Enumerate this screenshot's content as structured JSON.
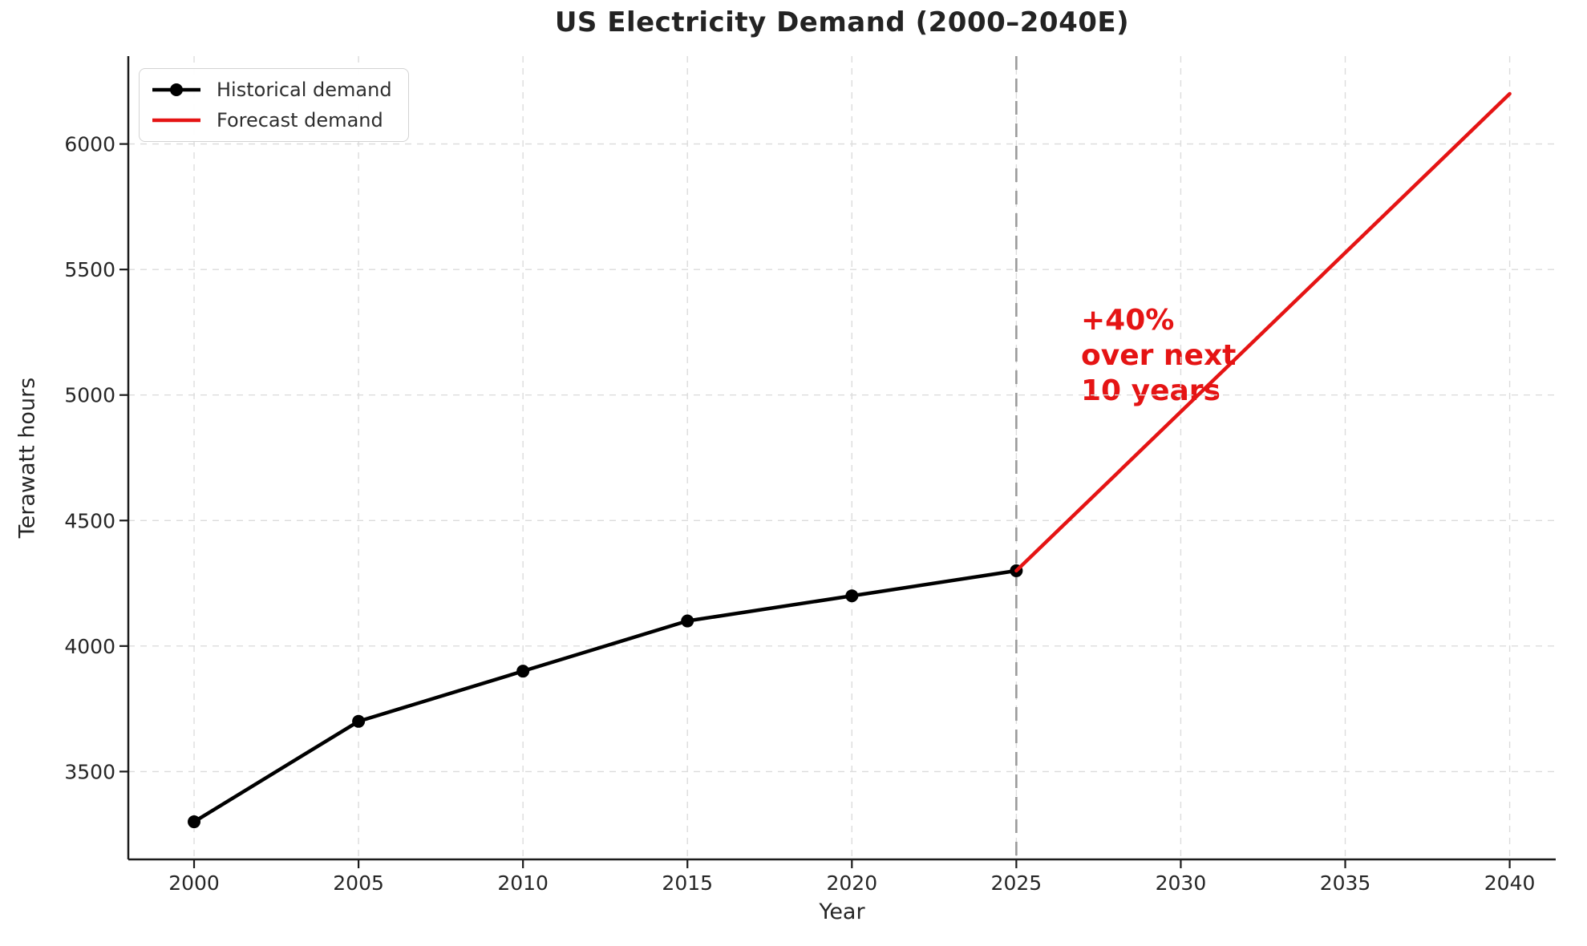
{
  "chart_data": {
    "type": "line",
    "title": "US Electricity Demand (2000–2040E)",
    "xlabel": "Year",
    "ylabel": "Terawatt hours",
    "x_ticks": [
      2000,
      2005,
      2010,
      2015,
      2020,
      2025,
      2030,
      2035,
      2040
    ],
    "y_ticks": [
      3500,
      4000,
      4500,
      5000,
      5500,
      6000
    ],
    "xlim": [
      1998.0,
      2041.4
    ],
    "ylim": [
      3150,
      6350
    ],
    "grid": true,
    "legend_position": "upper-left",
    "series": [
      {
        "name": "Historical demand",
        "color": "#000000",
        "marker": "circle",
        "x": [
          2000,
          2005,
          2010,
          2015,
          2020,
          2025
        ],
        "values": [
          3300,
          3700,
          3900,
          4100,
          4200,
          4300
        ]
      },
      {
        "name": "Forecast demand",
        "color": "#e51414",
        "marker": "none",
        "x": [
          2025,
          2040
        ],
        "values": [
          4300,
          6200
        ]
      }
    ],
    "forecast_divider": {
      "x": 2025,
      "color": "#9b9b9b",
      "style": "dashed"
    },
    "annotation": {
      "lines": [
        "+40%",
        "over next",
        "10 years"
      ],
      "color": "#e51414"
    }
  },
  "colors": {
    "grid": "#dcdcdc",
    "spine": "#1c1c1c",
    "tick_label": "#262626",
    "divider": "#9b9b9b"
  }
}
